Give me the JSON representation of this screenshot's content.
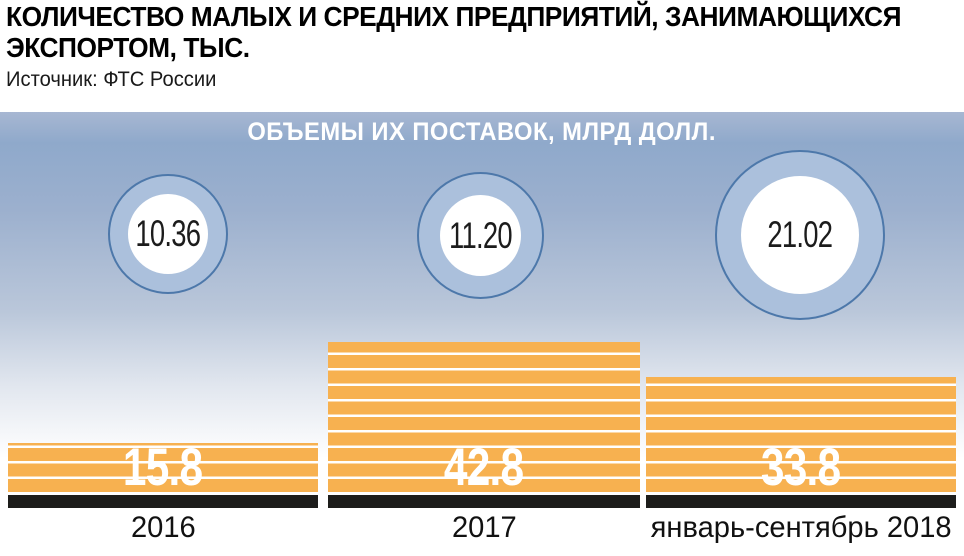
{
  "title_lines": [
    "КОЛИЧЕСТВО МАЛЫХ И СРЕДНИХ ПРЕДПРИЯТИЙ, ЗАНИМАЮЩИХСЯ",
    "ЭКСПОРТОМ, ТЫС."
  ],
  "title_full": "КОЛИЧЕСТВО МАЛЫХ И СРЕДНИХ ПРЕДПРИЯТИЙ, ЗАНИМАЮЩИХСЯ ЭКСПОРТОМ, ТЫС.",
  "source": "Источник: ФТС России",
  "panel_subtitle": "ОБЪЕМЫ ИХ ПОСТАВОК, МЛРД ДОЛЛ.",
  "colors": {
    "bar_orange": "#f7b150",
    "baseline_black": "#1d1d1b",
    "bubble_ring_fill": "#abc0dc",
    "bubble_ring_border": "#4d78aa",
    "panel_gradient_top": "#8fa9cb",
    "panel_gradient_bottom": "#ffffff",
    "value_text": "#ffffff",
    "title_text": "#000000"
  },
  "chart_data": {
    "type": "bar",
    "title": "КОЛИЧЕСТВО МАЛЫХ И СРЕДНИХ ПРЕДПРИЯТИЙ, ЗАНИМАЮЩИХСЯ ЭКСПОРТОМ, ТЫС.",
    "subtitle": "ОБЪЕМЫ ИХ ПОСТАВОК, МЛРД ДОЛЛ.",
    "source": "Источник: ФТС России",
    "categories": [
      "2016",
      "2017",
      "январь-сентябрь 2018"
    ],
    "series": [
      {
        "name": "Количество малых и средних предприятий, занимающихся экспортом, тыс.",
        "type": "bar",
        "values": [
          15.8,
          42.8,
          33.8
        ]
      },
      {
        "name": "Объемы их поставок, млрд долл.",
        "type": "bubble",
        "values": [
          10.36,
          11.2,
          21.02
        ]
      }
    ],
    "bar_labels": [
      "15.8",
      "42.8",
      "33.8"
    ],
    "bubble_labels": [
      "10.36",
      "11.20",
      "21.02"
    ],
    "xlabel": "",
    "ylabel": "",
    "ylim": [
      0,
      42.8
    ],
    "grid": false,
    "legend_position": "none",
    "bar_bottom_aligned": true,
    "bubble_size_proportional_to_value": true
  }
}
